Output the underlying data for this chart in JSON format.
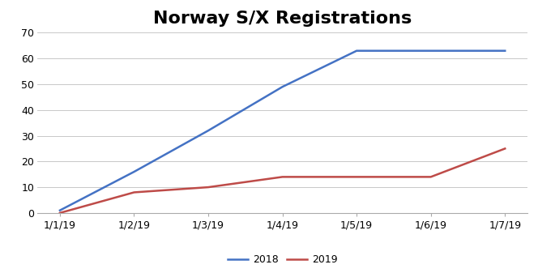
{
  "title": "Norway S/X Registrations",
  "x_labels": [
    "1/1/19",
    "1/2/19",
    "1/3/19",
    "1/4/19",
    "1/5/19",
    "1/6/19",
    "1/7/19"
  ],
  "series": [
    {
      "name": "2018",
      "values": [
        1,
        16,
        32,
        49,
        63,
        63,
        63
      ],
      "color": "#4472C4",
      "linewidth": 1.8
    },
    {
      "name": "2019",
      "values": [
        0,
        8,
        10,
        14,
        14,
        14,
        25
      ],
      "color": "#BE4B48",
      "linewidth": 1.8
    }
  ],
  "ylim": [
    0,
    70
  ],
  "yticks": [
    0,
    10,
    20,
    30,
    40,
    50,
    60,
    70
  ],
  "title_fontsize": 16,
  "tick_fontsize": 9,
  "legend_fontsize": 9,
  "background_color": "#FFFFFF",
  "plot_bg_color": "#FFFFFF",
  "grid_color": "#BFBFBF",
  "grid_alpha": 1.0,
  "grid_linewidth": 0.6
}
